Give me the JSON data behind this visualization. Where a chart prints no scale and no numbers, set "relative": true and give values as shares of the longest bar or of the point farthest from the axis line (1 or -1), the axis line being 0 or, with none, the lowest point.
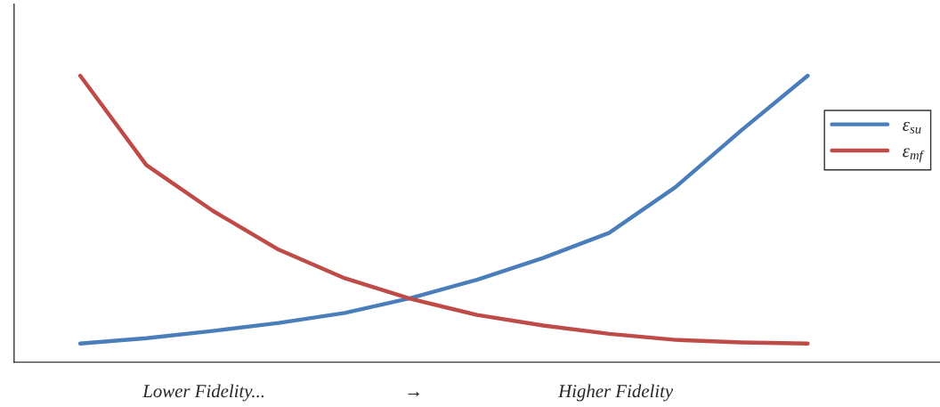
{
  "chart_data": {
    "type": "line",
    "relative": true,
    "grid": false,
    "legend": "right",
    "marker": "none",
    "line_style": "solid",
    "categories": [
      null,
      null,
      null,
      null,
      null,
      null,
      null,
      null,
      null,
      null,
      null,
      null
    ],
    "annotations": [
      "Lower Fidelity...",
      "→",
      "Higher Fidelity"
    ],
    "series": [
      {
        "name": "ε$_{su}$",
        "color": "#4a7ebb",
        "values": [
          0.065,
          0.084,
          0.109,
          0.137,
          0.172,
          0.224,
          0.288,
          0.364,
          0.452,
          0.611,
          0.81,
          1
        ]
      },
      {
        "name": "ε$_{mf}$",
        "color": "#be4b48",
        "values": [
          1,
          0.688,
          0.529,
          0.393,
          0.293,
          0.221,
          0.165,
          0.128,
          0.099,
          0.078,
          0.069,
          0.065
        ]
      }
    ]
  }
}
